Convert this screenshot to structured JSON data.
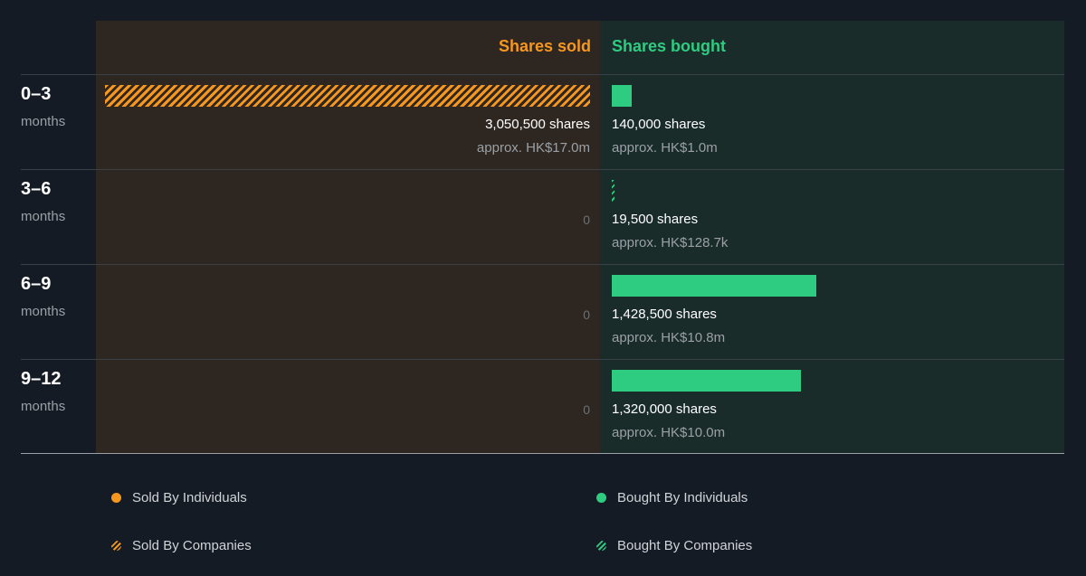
{
  "header": {
    "sold_label": "Shares sold",
    "bought_label": "Shares bought"
  },
  "colors": {
    "sold": "#f7971e",
    "bought": "#2ecc80",
    "sold_panel": "#2e2620",
    "bought_panel": "#192c2a",
    "background": "#151b24"
  },
  "chart_data": {
    "type": "bar",
    "categories": [
      "0–3 months",
      "3–6 months",
      "6–9 months",
      "9–12 months"
    ],
    "series": [
      {
        "name": "Shares sold",
        "values": [
          3050500,
          0,
          0,
          0
        ]
      },
      {
        "name": "Shares bought",
        "values": [
          140000,
          19500,
          1428500,
          1320000
        ]
      }
    ]
  },
  "rows": [
    {
      "period": "0–3",
      "unit": "months",
      "sold_shares": "3,050,500 shares",
      "sold_approx": "approx. HK$17.0m",
      "sold_zero": "",
      "bought_shares": "140,000 shares",
      "bought_approx": "approx. HK$1.0m",
      "sold_type": "companies",
      "bought_type": "individuals"
    },
    {
      "period": "3–6",
      "unit": "months",
      "sold_shares": "",
      "sold_approx": "",
      "sold_zero": "0",
      "bought_shares": "19,500 shares",
      "bought_approx": "approx. HK$128.7k",
      "sold_type": "none",
      "bought_type": "companies"
    },
    {
      "period": "6–9",
      "unit": "months",
      "sold_shares": "",
      "sold_approx": "",
      "sold_zero": "0",
      "bought_shares": "1,428,500 shares",
      "bought_approx": "approx. HK$10.8m",
      "sold_type": "none",
      "bought_type": "individuals"
    },
    {
      "period": "9–12",
      "unit": "months",
      "sold_shares": "",
      "sold_approx": "",
      "sold_zero": "0",
      "bought_shares": "1,320,000 shares",
      "bought_approx": "approx. HK$10.0m",
      "sold_type": "none",
      "bought_type": "individuals"
    }
  ],
  "legend": {
    "sold_individuals": "Sold By Individuals",
    "bought_individuals": "Bought By Individuals",
    "sold_companies": "Sold By Companies",
    "bought_companies": "Bought By Companies"
  }
}
